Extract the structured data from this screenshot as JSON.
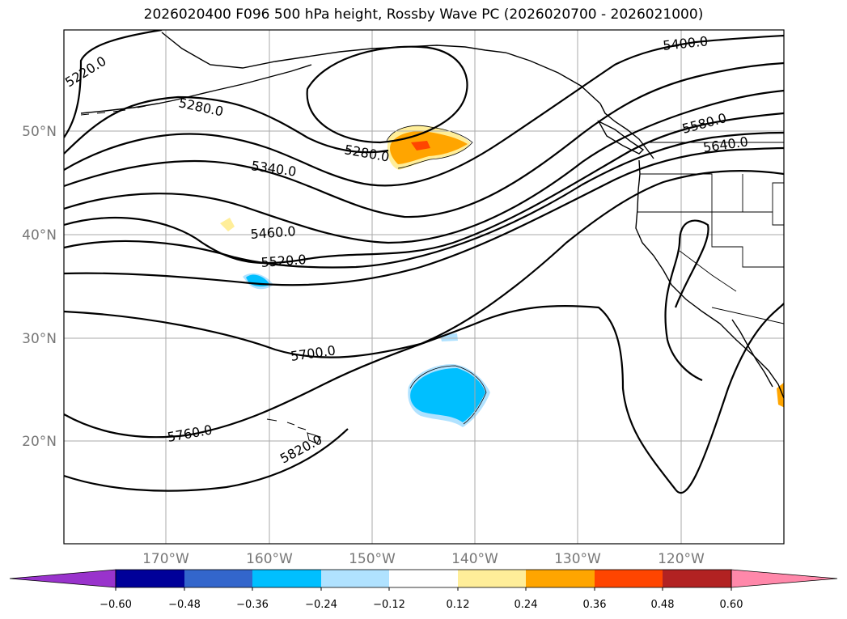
{
  "title": "2026020400 F096 500 hPa height, Rossby Wave PC (2026020700 - 2026021000)",
  "map": {
    "lat_labels": [
      "50°N",
      "40°N",
      "30°N",
      "20°N"
    ],
    "lon_labels": [
      "170°W",
      "160°W",
      "150°W",
      "140°W",
      "130°W",
      "120°W"
    ],
    "contour_labels": [
      "5220.0",
      "5280.0",
      "5280.0",
      "5340.0",
      "5400.0",
      "5460.0",
      "5520.0",
      "5580.0",
      "5640.0",
      "5700.0",
      "5760.0",
      "5820.0"
    ]
  },
  "colorbar": {
    "tick_labels": [
      "−0.60",
      "−0.48",
      "−0.36",
      "−0.24",
      "−0.12",
      "0.12",
      "0.24",
      "0.36",
      "0.48",
      "0.60"
    ],
    "colors": [
      "#9933cc",
      "#000099",
      "#3366cc",
      "#00bfff",
      "#b0e2ff",
      "#ffffff",
      "#ffee99",
      "#ffa500",
      "#ff4500",
      "#b22222",
      "#ff88aa"
    ]
  }
}
